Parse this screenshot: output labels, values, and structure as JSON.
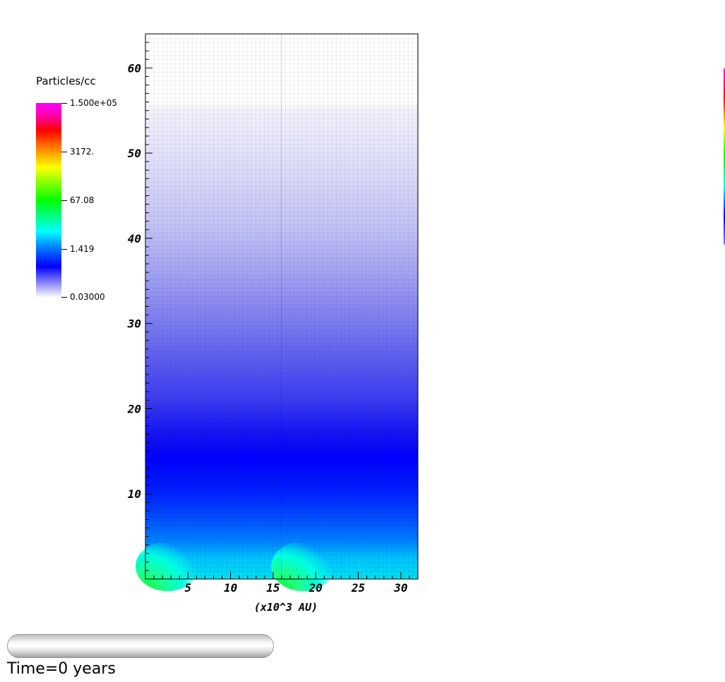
{
  "legend": {
    "title": "Particles/cc",
    "labels": [
      "1.500e+05",
      "3172.",
      "67.08",
      "1.419",
      "0.03000"
    ]
  },
  "time_label": "Time=0 years",
  "chart_data": {
    "type": "heatmap",
    "title": "",
    "xlabel": "(x10^3 AU)",
    "ylabel": "",
    "xlim": [
      0,
      32
    ],
    "ylim": [
      0,
      64
    ],
    "x_ticks": [
      5,
      10,
      15,
      20,
      25,
      30
    ],
    "x_tick_labels": [
      "5",
      "10",
      "15",
      "20",
      "25",
      "30"
    ],
    "y_ticks": [
      10,
      20,
      30,
      40,
      50,
      60
    ],
    "y_tick_labels": [
      "10",
      "20",
      "30",
      "40",
      "50",
      "60"
    ],
    "colorbar": {
      "label": "Particles/cc",
      "scale": "log",
      "range": [
        0.03,
        150000
      ],
      "ticks": [
        150000,
        3172,
        67.08,
        1.419,
        0.03
      ],
      "tick_labels": [
        "1.500e+05",
        "3172.",
        "67.08",
        "1.419",
        "0.03000"
      ]
    },
    "grid": true
  }
}
